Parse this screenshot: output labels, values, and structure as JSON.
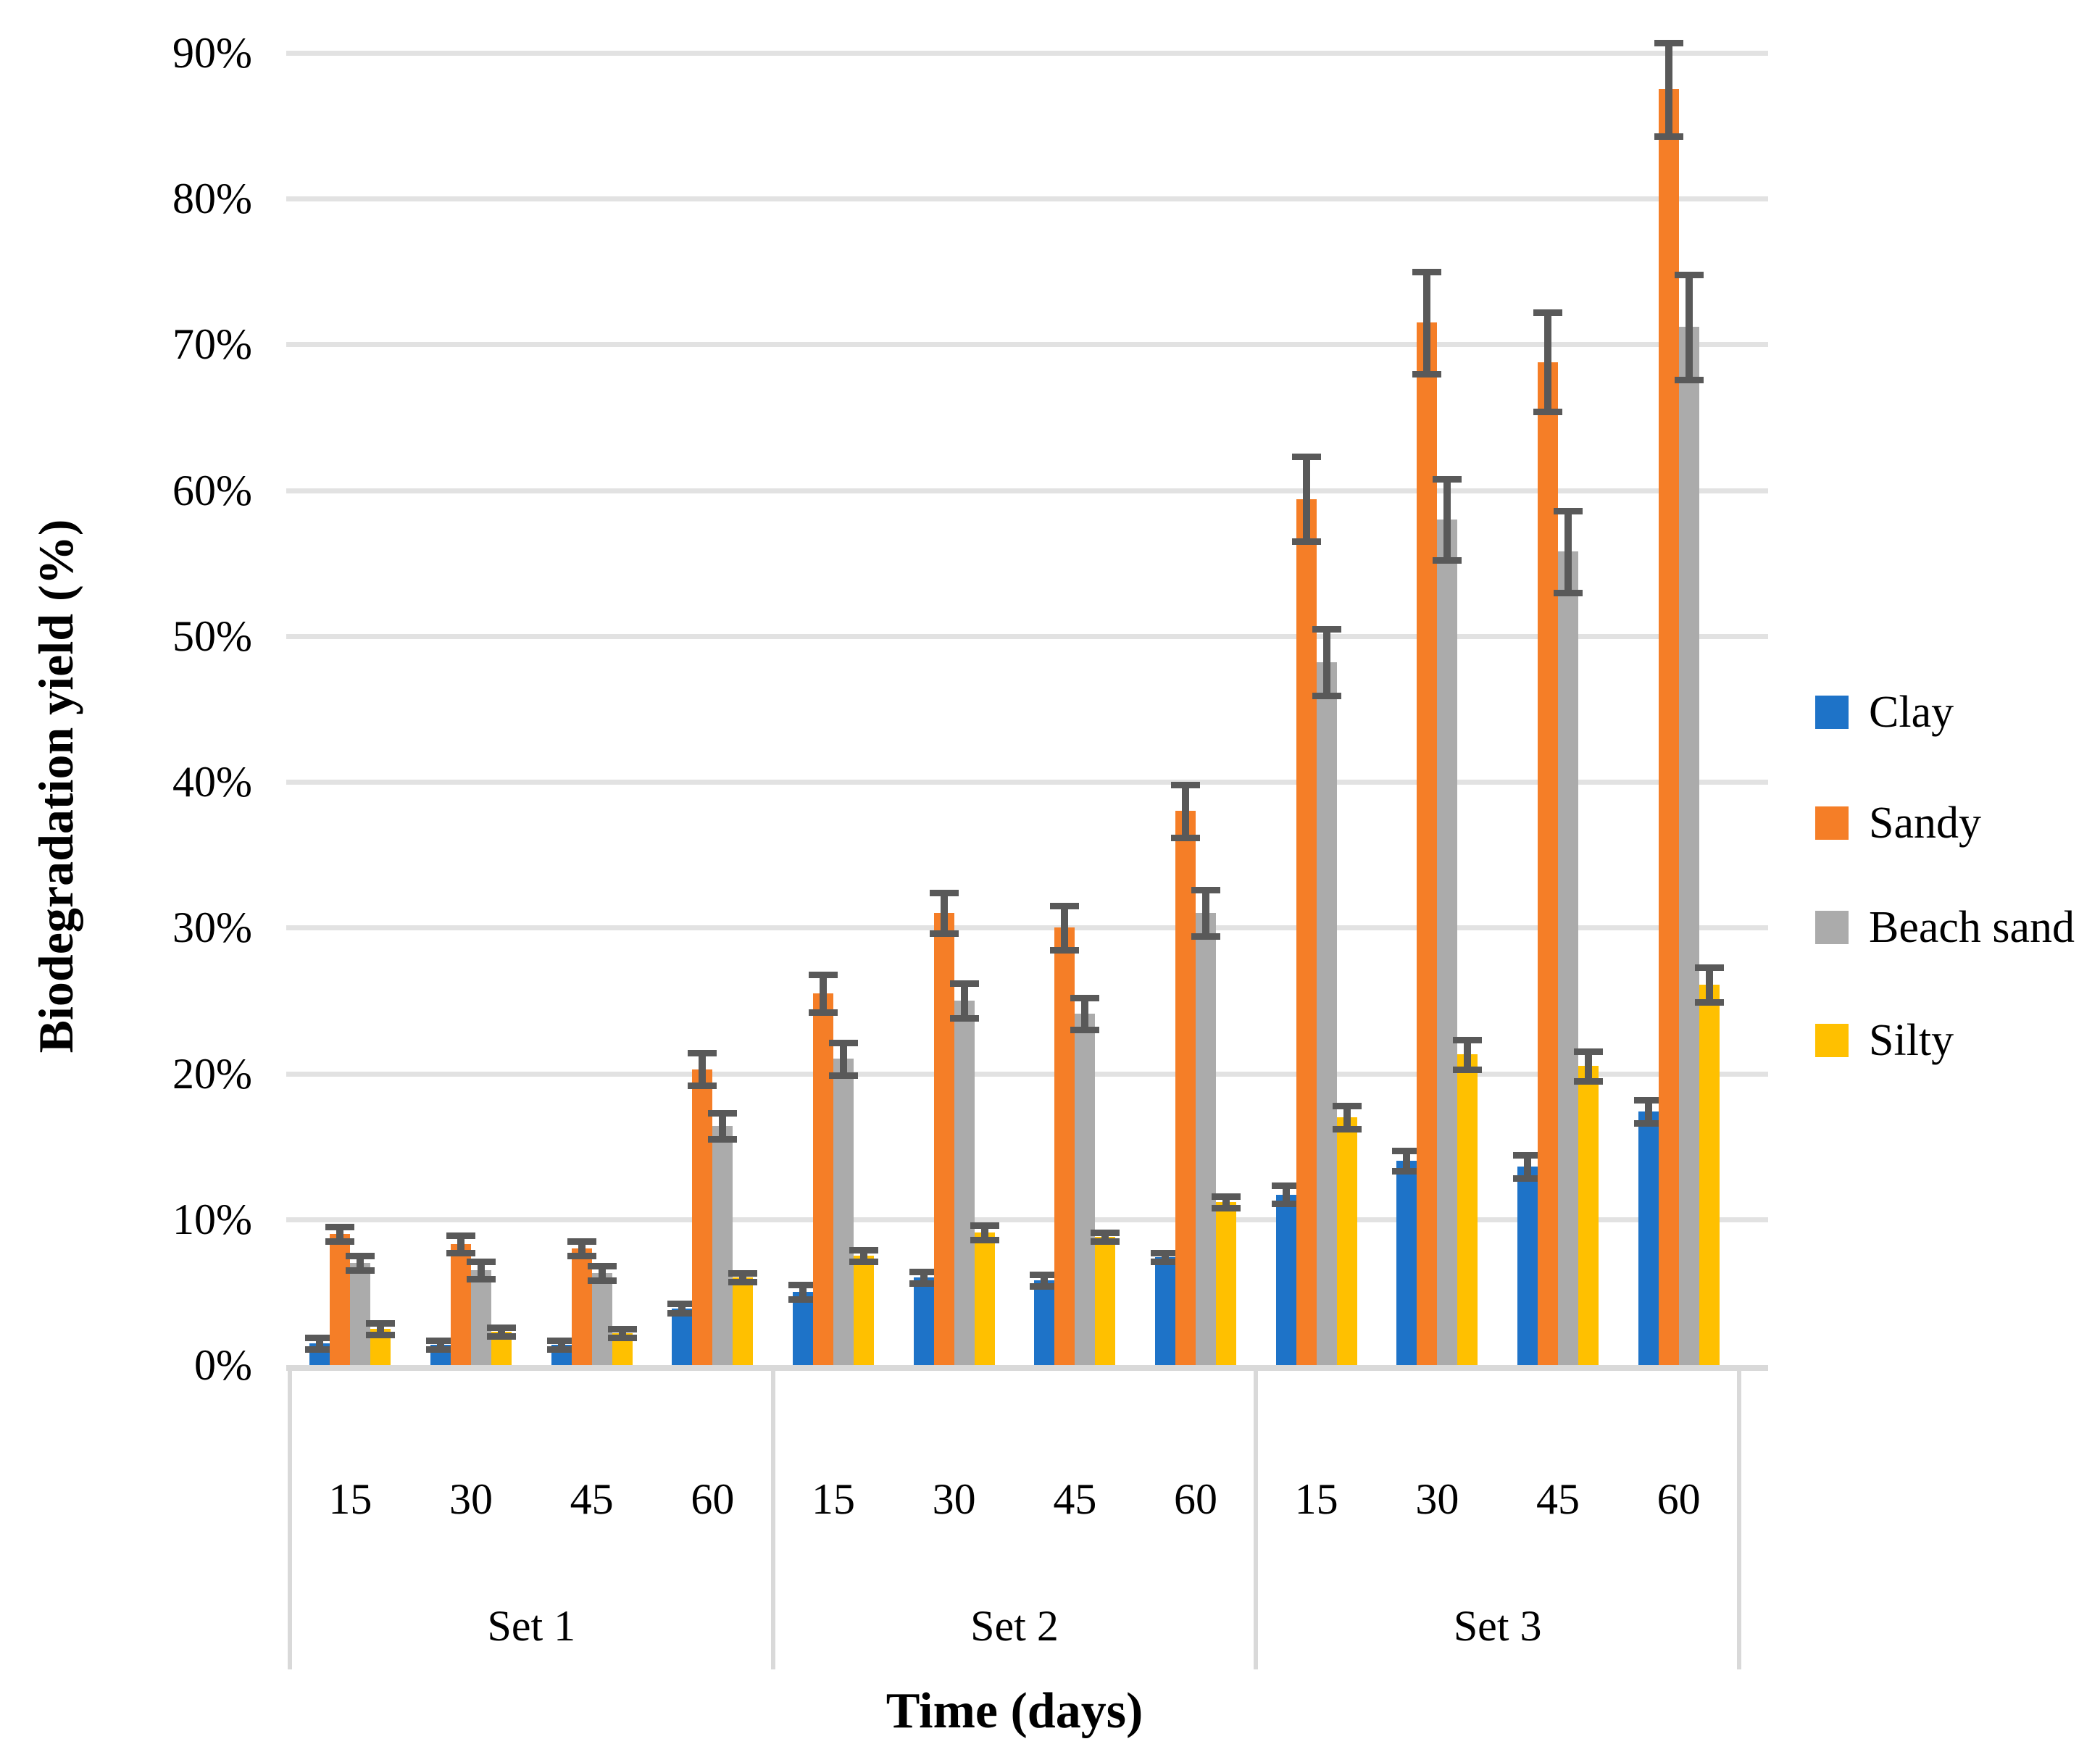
{
  "figure": {
    "background": "#FFFFFF"
  },
  "y_axis": {
    "title": "Biodegradation yield (%)",
    "tick_labels": [
      "0%",
      "10%",
      "20%",
      "30%",
      "40%",
      "50%",
      "60%",
      "70%",
      "80%",
      "90%"
    ]
  },
  "x_axis": {
    "title": "Time (days)",
    "time_tick_labels": [
      "15",
      "30",
      "45",
      "60"
    ],
    "set_labels": [
      "Set 1",
      "Set 2",
      "Set 3"
    ]
  },
  "legend": {
    "position": "right",
    "items": [
      "Clay",
      "Sandy",
      "Beach sand",
      "Silty"
    ]
  },
  "chart_data": {
    "type": "bar",
    "title": "",
    "xlabel": "Time (days)",
    "ylabel": "Biodegradation yield (%)",
    "ylim": [
      0,
      90
    ],
    "y_tick_labels": [
      "0%",
      "10%",
      "20%",
      "30%",
      "40%",
      "50%",
      "60%",
      "70%",
      "80%",
      "90%"
    ],
    "grid": true,
    "legend_position": "right",
    "error_bars": true,
    "groups": [
      "Set 1",
      "Set 2",
      "Set 3"
    ],
    "categories": [
      "15",
      "30",
      "45",
      "60"
    ],
    "values_order": "Set 1 (15,30,45,60), Set 2 (15,30,45,60), Set 3 (15,30,45,60)",
    "unit": "percent",
    "colors": {
      "error_bar": "#595959",
      "gridline": "#E2E2E2",
      "axis": "#D9D9D9"
    },
    "series": [
      {
        "name": "Clay",
        "color": "#1E73C8",
        "values": [
          1.5,
          1.4,
          1.4,
          3.9,
          5.0,
          6.0,
          5.8,
          7.4,
          11.7,
          14.0,
          13.6,
          17.4
        ],
        "errors": [
          0.4,
          0.3,
          0.3,
          0.3,
          0.5,
          0.4,
          0.4,
          0.3,
          0.6,
          0.7,
          0.8,
          0.8
        ]
      },
      {
        "name": "Sandy",
        "color": "#F57E27",
        "values": [
          9.0,
          8.3,
          8.0,
          20.3,
          25.5,
          31.0,
          30.0,
          38.0,
          59.4,
          71.5,
          68.8,
          87.5
        ],
        "errors": [
          0.5,
          0.6,
          0.5,
          1.1,
          1.3,
          1.4,
          1.5,
          1.8,
          2.9,
          3.5,
          3.4,
          3.2
        ]
      },
      {
        "name": "Beach sand",
        "color": "#ABABAB",
        "values": [
          7.0,
          6.5,
          6.3,
          16.4,
          21.0,
          25.0,
          24.1,
          31.0,
          48.2,
          58.0,
          55.8,
          71.2
        ],
        "errors": [
          0.5,
          0.6,
          0.5,
          0.9,
          1.1,
          1.2,
          1.1,
          1.6,
          2.3,
          2.8,
          2.8,
          3.6
        ]
      },
      {
        "name": "Silty",
        "color": "#FFC000",
        "values": [
          2.5,
          2.3,
          2.2,
          6.0,
          7.5,
          9.1,
          8.8,
          11.2,
          17.0,
          21.3,
          20.5,
          26.1
        ],
        "errors": [
          0.4,
          0.3,
          0.3,
          0.3,
          0.4,
          0.5,
          0.3,
          0.4,
          0.8,
          1.0,
          1.0,
          1.2
        ]
      }
    ]
  }
}
